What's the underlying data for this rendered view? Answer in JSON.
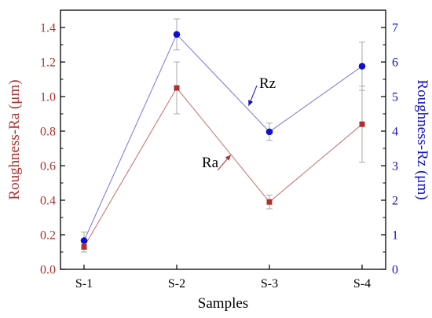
{
  "chart_data": {
    "type": "line",
    "categories": [
      "S-1",
      "S-2",
      "S-3",
      "S-4"
    ],
    "xlabel": "Samples",
    "series": [
      {
        "name": "Ra",
        "axis": "left",
        "marker": "square",
        "values": [
          0.13,
          1.05,
          0.39,
          0.84
        ],
        "errors": [
          0.03,
          0.15,
          0.04,
          0.22
        ]
      },
      {
        "name": "Rz",
        "axis": "right",
        "marker": "circle",
        "values": [
          0.83,
          6.8,
          3.98,
          5.88
        ],
        "errors": [
          0.25,
          0.45,
          0.25,
          0.7
        ]
      }
    ],
    "y_left": {
      "label": "Roughness-Ra (μm)",
      "ylim": [
        0,
        1.5
      ],
      "ticks": [
        "0.0",
        "0.2",
        "0.4",
        "0.6",
        "0.8",
        "1.0",
        "1.2",
        "1.4"
      ]
    },
    "y_right": {
      "label": "Roughness-Rz (μm)",
      "ylim": [
        0,
        7.5
      ],
      "ticks": [
        "0",
        "1",
        "2",
        "3",
        "4",
        "5",
        "6",
        "7"
      ]
    },
    "annotations": [
      {
        "text": "Rz",
        "series": "Rz"
      },
      {
        "text": "Ra",
        "series": "Ra"
      }
    ],
    "grid": false,
    "legend": "none",
    "colors": {
      "ra": "#b03030",
      "ra_line": "#c87878",
      "rz": "#1010c8",
      "rz_line": "#8080e0",
      "errorbar": "#aaaaaa",
      "axis": "#000000"
    }
  }
}
